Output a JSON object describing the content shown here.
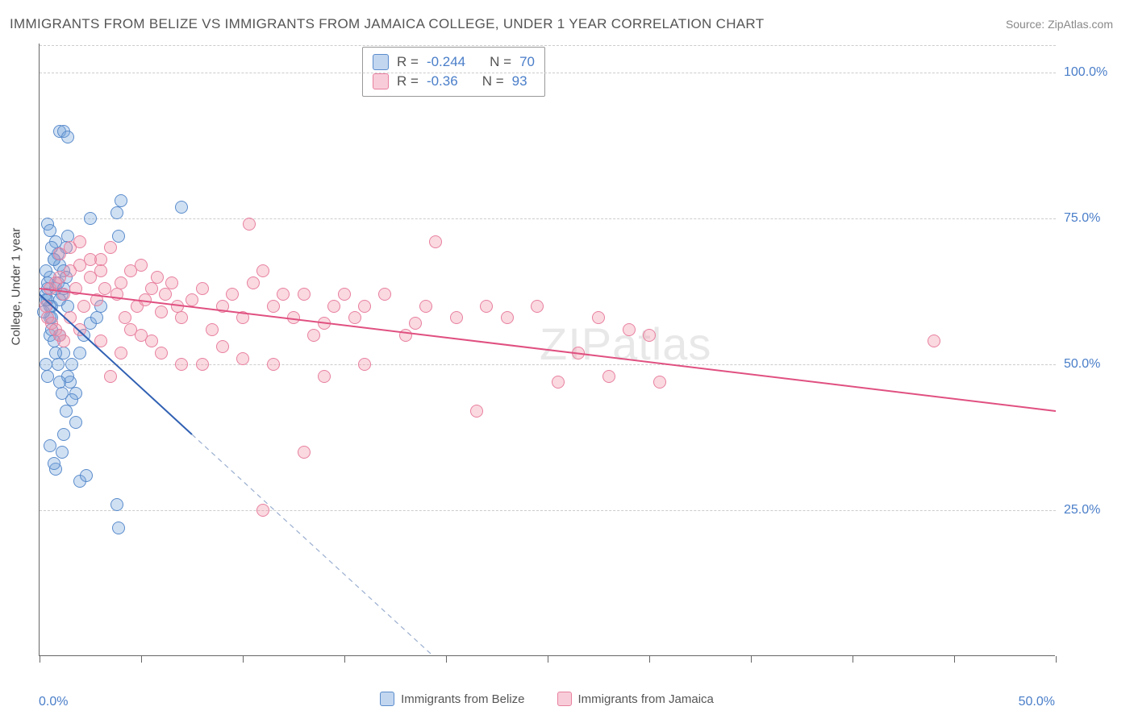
{
  "header": {
    "title": "IMMIGRANTS FROM BELIZE VS IMMIGRANTS FROM JAMAICA COLLEGE, UNDER 1 YEAR CORRELATION CHART",
    "source": "Source: ZipAtlas.com"
  },
  "chart": {
    "type": "scatter",
    "ylabel": "College, Under 1 year",
    "background_color": "#ffffff",
    "grid_color": "#cccccc",
    "axis_color": "#666666",
    "watermark": "ZIPatlas",
    "xlim": [
      0,
      50
    ],
    "ylim": [
      0,
      105
    ],
    "xticks": [
      0,
      5,
      10,
      15,
      20,
      25,
      30,
      35,
      40,
      45,
      50
    ],
    "xtick_labels": {
      "0": "0.0%",
      "50": "50.0%"
    },
    "yticks": [
      25,
      50,
      75,
      100
    ],
    "ytick_labels": {
      "25": "25.0%",
      "50": "50.0%",
      "75": "75.0%",
      "100": "100.0%"
    },
    "marker_size": 16,
    "series": [
      {
        "id": "belize",
        "name": "Immigrants from Belize",
        "fill_color": "rgba(120,165,220,0.35)",
        "stroke_color": "#5a8ccc",
        "r": -0.244,
        "n": 70,
        "trendline": {
          "x1": 0,
          "y1": 62,
          "x2": 7.5,
          "y2": 38,
          "extend_dashed_to_x": 20,
          "color": "#3060b3",
          "width": 2
        },
        "points": [
          [
            0.3,
            62
          ],
          [
            0.4,
            61
          ],
          [
            0.5,
            65
          ],
          [
            0.6,
            60
          ],
          [
            0.7,
            68
          ],
          [
            0.8,
            63
          ],
          [
            0.9,
            64
          ],
          [
            1.0,
            67
          ],
          [
            1.1,
            62
          ],
          [
            1.2,
            66
          ],
          [
            1.3,
            70
          ],
          [
            1.4,
            72
          ],
          [
            0.5,
            55
          ],
          [
            0.6,
            58
          ],
          [
            0.8,
            71
          ],
          [
            0.9,
            69
          ],
          [
            1.0,
            61
          ],
          [
            1.1,
            35
          ],
          [
            1.2,
            38
          ],
          [
            1.3,
            42
          ],
          [
            1.5,
            47
          ],
          [
            1.6,
            50
          ],
          [
            1.8,
            45
          ],
          [
            2.0,
            52
          ],
          [
            2.2,
            55
          ],
          [
            2.5,
            57
          ],
          [
            2.8,
            58
          ],
          [
            3.0,
            60
          ],
          [
            1.0,
            90
          ],
          [
            1.2,
            90
          ],
          [
            1.4,
            89
          ],
          [
            3.8,
            76
          ],
          [
            3.9,
            72
          ],
          [
            4.0,
            78
          ],
          [
            0.4,
            74
          ],
          [
            0.5,
            73
          ],
          [
            0.6,
            70
          ],
          [
            0.7,
            68
          ],
          [
            0.3,
            66
          ],
          [
            0.4,
            64
          ],
          [
            2.5,
            75
          ],
          [
            0.8,
            32
          ],
          [
            2.0,
            30
          ],
          [
            2.3,
            31
          ],
          [
            3.8,
            26
          ],
          [
            3.9,
            22
          ],
          [
            7.0,
            77
          ],
          [
            1.4,
            48
          ],
          [
            1.6,
            44
          ],
          [
            1.8,
            40
          ],
          [
            0.5,
            36
          ],
          [
            0.7,
            33
          ],
          [
            1.0,
            55
          ],
          [
            1.2,
            52
          ],
          [
            0.3,
            50
          ],
          [
            0.4,
            48
          ],
          [
            0.5,
            58
          ],
          [
            0.6,
            56
          ],
          [
            0.7,
            54
          ],
          [
            0.8,
            52
          ],
          [
            0.9,
            50
          ],
          [
            1.0,
            47
          ],
          [
            1.1,
            45
          ],
          [
            1.2,
            63
          ],
          [
            1.3,
            65
          ],
          [
            1.4,
            60
          ],
          [
            0.2,
            59
          ],
          [
            0.3,
            61
          ],
          [
            0.4,
            63
          ],
          [
            0.5,
            60
          ]
        ]
      },
      {
        "id": "jamaica",
        "name": "Immigrants from Jamaica",
        "fill_color": "rgba(240,145,170,0.35)",
        "stroke_color": "#e8809f",
        "r": -0.36,
        "n": 93,
        "trendline": {
          "x1": 0,
          "y1": 63,
          "x2": 50,
          "y2": 42,
          "color": "#e05080",
          "width": 2
        },
        "points": [
          [
            0.5,
            63
          ],
          [
            0.8,
            64
          ],
          [
            1.0,
            65
          ],
          [
            1.2,
            62
          ],
          [
            1.5,
            66
          ],
          [
            1.8,
            63
          ],
          [
            2.0,
            67
          ],
          [
            2.2,
            60
          ],
          [
            2.5,
            65
          ],
          [
            2.8,
            61
          ],
          [
            3.0,
            68
          ],
          [
            3.2,
            63
          ],
          [
            3.5,
            70
          ],
          [
            3.8,
            62
          ],
          [
            4.0,
            64
          ],
          [
            4.2,
            58
          ],
          [
            4.5,
            66
          ],
          [
            4.8,
            60
          ],
          [
            5.0,
            67
          ],
          [
            5.2,
            61
          ],
          [
            5.5,
            63
          ],
          [
            5.8,
            65
          ],
          [
            6.0,
            59
          ],
          [
            6.2,
            62
          ],
          [
            6.5,
            64
          ],
          [
            6.8,
            60
          ],
          [
            7.0,
            58
          ],
          [
            7.5,
            61
          ],
          [
            8.0,
            63
          ],
          [
            8.5,
            56
          ],
          [
            9.0,
            60
          ],
          [
            9.5,
            62
          ],
          [
            10.0,
            58
          ],
          [
            10.3,
            74
          ],
          [
            10.5,
            64
          ],
          [
            11.0,
            66
          ],
          [
            11.5,
            60
          ],
          [
            12.0,
            62
          ],
          [
            12.5,
            58
          ],
          [
            13.0,
            62
          ],
          [
            13.5,
            55
          ],
          [
            14.0,
            57
          ],
          [
            14.5,
            60
          ],
          [
            15.0,
            62
          ],
          [
            15.5,
            58
          ],
          [
            16.0,
            60
          ],
          [
            17.0,
            62
          ],
          [
            18.0,
            55
          ],
          [
            18.5,
            57
          ],
          [
            19.0,
            60
          ],
          [
            19.5,
            71
          ],
          [
            20.5,
            58
          ],
          [
            21.5,
            42
          ],
          [
            22.0,
            60
          ],
          [
            23.0,
            58
          ],
          [
            24.5,
            60
          ],
          [
            25.5,
            47
          ],
          [
            26.5,
            52
          ],
          [
            27.5,
            58
          ],
          [
            28.0,
            48
          ],
          [
            29.0,
            56
          ],
          [
            30.0,
            55
          ],
          [
            30.5,
            47
          ],
          [
            44.0,
            54
          ],
          [
            1.0,
            69
          ],
          [
            1.5,
            70
          ],
          [
            2.0,
            71
          ],
          [
            2.5,
            68
          ],
          [
            3.0,
            66
          ],
          [
            0.3,
            60
          ],
          [
            0.4,
            58
          ],
          [
            0.6,
            57
          ],
          [
            0.8,
            56
          ],
          [
            1.0,
            55
          ],
          [
            1.2,
            54
          ],
          [
            1.5,
            58
          ],
          [
            2.0,
            56
          ],
          [
            3.0,
            54
          ],
          [
            4.0,
            52
          ],
          [
            5.0,
            55
          ],
          [
            6.0,
            52
          ],
          [
            7.0,
            50
          ],
          [
            11.0,
            25
          ],
          [
            13.0,
            35
          ],
          [
            3.5,
            48
          ],
          [
            4.5,
            56
          ],
          [
            5.5,
            54
          ],
          [
            8.0,
            50
          ],
          [
            9.0,
            53
          ],
          [
            10.0,
            51
          ],
          [
            11.5,
            50
          ],
          [
            14.0,
            48
          ],
          [
            16.0,
            50
          ]
        ]
      }
    ],
    "legend_top": {
      "r_label": "R =",
      "n_label": "N ="
    },
    "legend_bottom": [
      {
        "swatch": "blue",
        "label": "Immigrants from Belize"
      },
      {
        "swatch": "pink",
        "label": "Immigrants from Jamaica"
      }
    ]
  }
}
